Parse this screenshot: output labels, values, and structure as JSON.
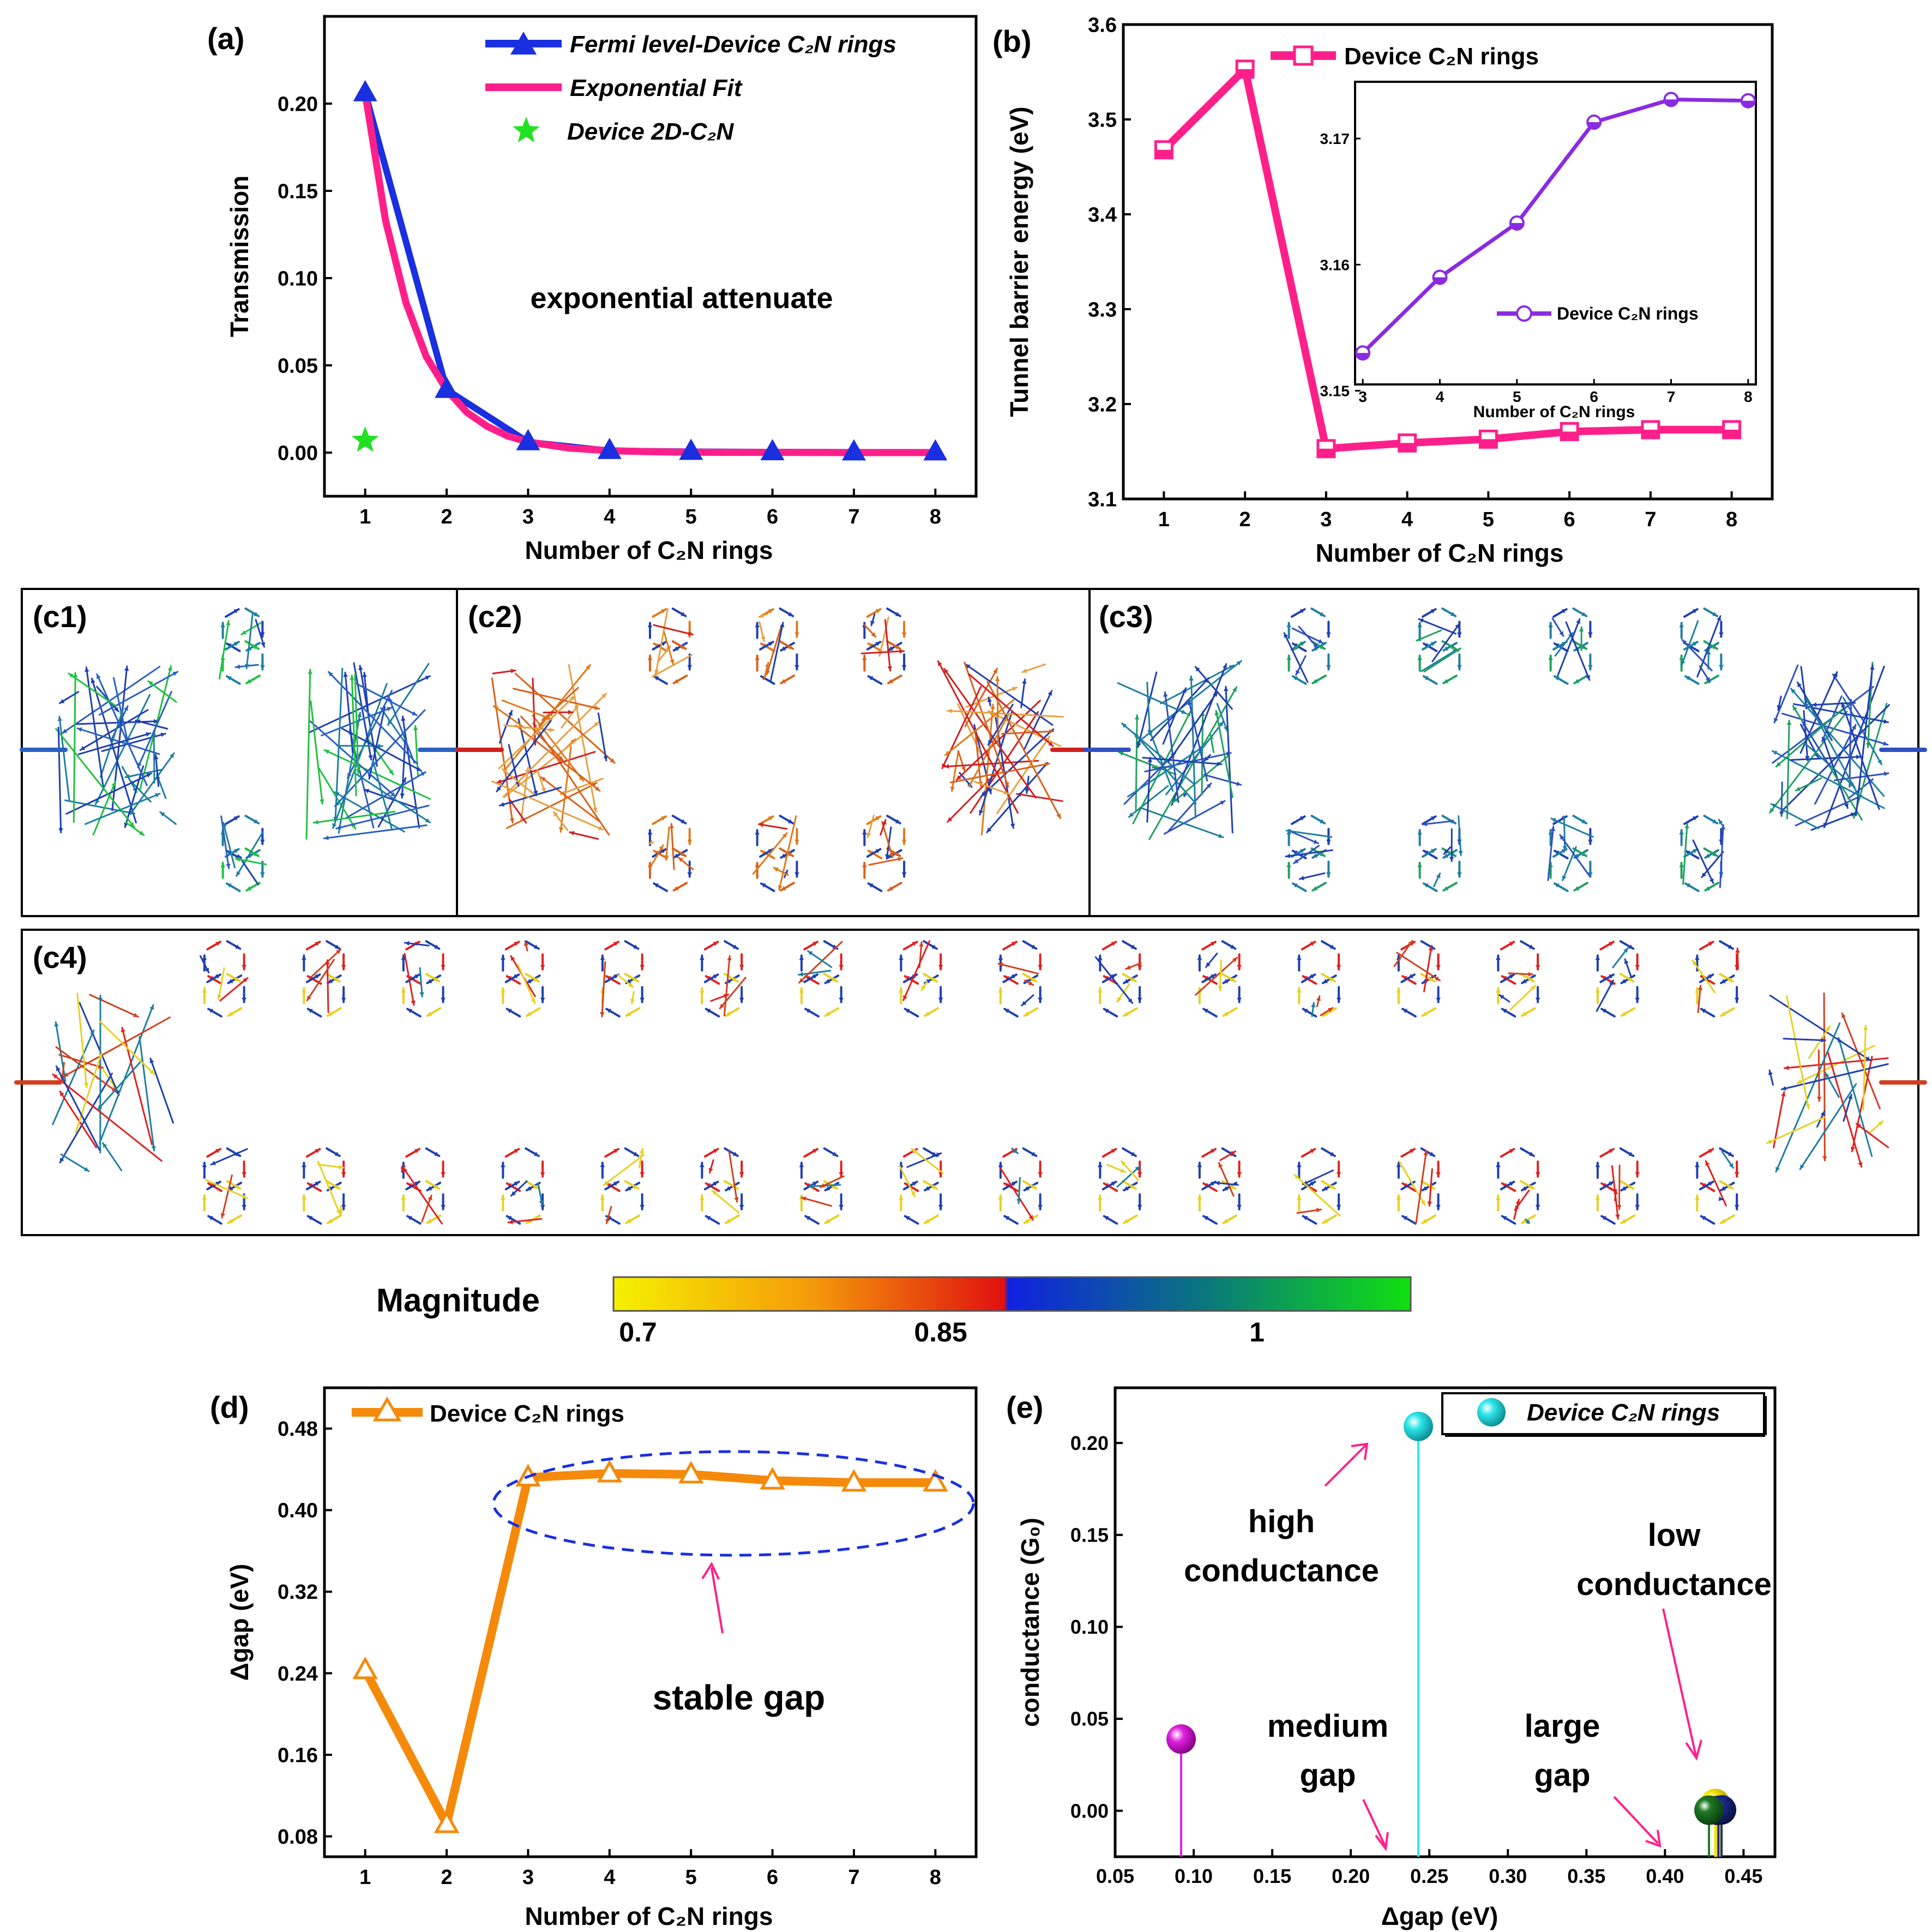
{
  "colors": {
    "blue": "#1a2fe0",
    "pink": "#ff1f8a",
    "green_star": "#22e022",
    "magenta": "#ff1493",
    "purple": "#8a2be2",
    "orange": "#f58a0a",
    "dash_blue": "#1a2fe0",
    "cyan": "#2ee6ea",
    "violet_ball": "#e020e0",
    "yellow_ball": "#f6e20a",
    "darkgreen_ball": "#1e7a24",
    "navy_ball": "#1c2a8c"
  },
  "panel_a": {
    "label": "(a)",
    "ylabel": "Transmission",
    "xlabel": "Number of C₂N rings",
    "annotation": "exponential attenuate",
    "legend": [
      "Fermi level-Device C₂N rings",
      "Exponential Fit",
      "Device 2D-C₂N"
    ],
    "icons": [
      "triangle-marker-icon",
      "star-marker-icon"
    ]
  },
  "panel_b": {
    "label": "(b)",
    "ylabel": "Tunnel barrier energy (eV)",
    "xlabel": "Number of C₂N rings",
    "legend": "Device C₂N rings",
    "inset_xlabel": "Number of C₂N rings",
    "inset_legend": "Device C₂N rings"
  },
  "panel_c": {
    "labels": [
      "(c1)",
      "(c2)",
      "(c3)",
      "(c4)"
    ],
    "colorbar_title": "Magnitude",
    "colorbar_ticks": [
      "0.7",
      "0.85",
      "1"
    ],
    "colorbar_colors": [
      "#f5f000",
      "#f58a0a",
      "#e01010",
      "#1020e0",
      "#0a7a7a",
      "#10e010"
    ],
    "panel_colors": [
      "#2ba06a",
      "#e07818",
      "#2a7ab0",
      "#d04020"
    ],
    "flux_description": "current-flux arrows"
  },
  "panel_d": {
    "label": "(d)",
    "ylabel": "Δgap (eV)",
    "xlabel": "Number of C₂N rings",
    "legend": "Device C₂N rings",
    "annotation": "stable gap"
  },
  "panel_e": {
    "label": "(e)",
    "ylabel": "conductance (G₀)",
    "xlabel": "Δgap (eV)",
    "legend": "Device C₂N rings",
    "annotations": [
      "high",
      "conductance",
      "low",
      "conductance",
      "medium",
      "gap",
      "large",
      "gap"
    ]
  },
  "chart_data": [
    {
      "id": "a",
      "type": "line",
      "title": "",
      "xlabel": "Number of C₂N rings",
      "ylabel": "Transmission",
      "xlim": [
        0.5,
        8.5
      ],
      "ylim": [
        -0.025,
        0.25
      ],
      "xticks": [
        1,
        2,
        3,
        4,
        5,
        6,
        7,
        8
      ],
      "yticks": [
        0.0,
        0.05,
        0.1,
        0.15,
        0.2
      ],
      "ytick_labels": [
        "0.00",
        "0.05",
        "0.10",
        "0.15",
        "0.20"
      ],
      "series": [
        {
          "name": "Fermi level-Device C₂N rings",
          "x": [
            1,
            2,
            3,
            4,
            5,
            6,
            7,
            8
          ],
          "values": [
            0.206,
            0.036,
            0.006,
            0.001,
            0.0005,
            0.0003,
            0.0002,
            0.0002
          ]
        },
        {
          "name": "Exponential Fit",
          "x": [
            1,
            1.25,
            1.5,
            1.75,
            2,
            2.25,
            2.5,
            2.75,
            3,
            3.5,
            4,
            4.5,
            5,
            6,
            7,
            8
          ],
          "values": [
            0.206,
            0.133,
            0.086,
            0.055,
            0.036,
            0.023,
            0.015,
            0.0095,
            0.0061,
            0.0026,
            0.0011,
            0.0005,
            0.0002,
            0.0001,
            0.0,
            0.0
          ]
        },
        {
          "name": "Device 2D-C₂N",
          "x": [
            1
          ],
          "values": [
            0.007
          ]
        }
      ]
    },
    {
      "id": "b",
      "type": "line",
      "xlabel": "Number of C₂N rings",
      "ylabel": "Tunnel barrier energy (eV)",
      "xlim": [
        0.5,
        8.5
      ],
      "ylim": [
        3.1,
        3.6
      ],
      "xticks": [
        1,
        2,
        3,
        4,
        5,
        6,
        7,
        8
      ],
      "yticks": [
        3.1,
        3.2,
        3.3,
        3.4,
        3.5,
        3.6
      ],
      "ytick_labels": [
        "3.1",
        "3.2",
        "3.3",
        "3.4",
        "3.5",
        "3.6"
      ],
      "series": [
        {
          "name": "Device C₂N rings",
          "x": [
            1,
            2,
            3,
            4,
            5,
            6,
            7,
            8
          ],
          "values": [
            3.468,
            3.553,
            3.153,
            3.159,
            3.163,
            3.171,
            3.173,
            3.173
          ]
        }
      ],
      "inset": {
        "xlim": [
          2.9,
          8.1
        ],
        "ylim": [
          3.1505,
          3.1745
        ],
        "xticks": [
          3,
          4,
          5,
          6,
          7,
          8
        ],
        "yticks": [
          3.15,
          3.16,
          3.17
        ],
        "ytick_labels": [
          "3.15",
          "3.16",
          "3.17"
        ],
        "x": [
          3,
          4,
          5,
          6,
          7,
          8
        ],
        "values": [
          3.153,
          3.159,
          3.1633,
          3.1713,
          3.1731,
          3.173
        ]
      }
    },
    {
      "id": "d",
      "type": "line",
      "xlabel": "Number of C₂N rings",
      "ylabel": "Δgap (eV)",
      "xlim": [
        0.5,
        8.5
      ],
      "ylim": [
        0.06,
        0.52
      ],
      "xticks": [
        1,
        2,
        3,
        4,
        5,
        6,
        7,
        8
      ],
      "yticks": [
        0.08,
        0.16,
        0.24,
        0.32,
        0.4,
        0.48
      ],
      "ytick_labels": [
        "0.08",
        "0.16",
        "0.24",
        "0.32",
        "0.40",
        "0.48"
      ],
      "series": [
        {
          "name": "Device C₂N rings",
          "x": [
            1,
            2,
            3,
            4,
            5,
            6,
            7,
            8
          ],
          "values": [
            0.243,
            0.092,
            0.432,
            0.436,
            0.435,
            0.429,
            0.427,
            0.427
          ]
        }
      ]
    },
    {
      "id": "e",
      "type": "scatter",
      "xlabel": "Δgap (eV)",
      "ylabel": "conductance (G₀)",
      "xlim": [
        0.05,
        0.47
      ],
      "ylim": [
        -0.025,
        0.23
      ],
      "xticks": [
        0.05,
        0.1,
        0.15,
        0.2,
        0.25,
        0.3,
        0.35,
        0.4,
        0.45
      ],
      "xtick_labels": [
        "0.05",
        "0.10",
        "0.15",
        "0.20",
        "0.25",
        "0.30",
        "0.35",
        "0.40",
        "0.45"
      ],
      "yticks": [
        0.0,
        0.05,
        0.1,
        0.15,
        0.2
      ],
      "ytick_labels": [
        "0.00",
        "0.05",
        "0.10",
        "0.15",
        "0.20"
      ],
      "series": [
        {
          "name": "Device C₂N rings",
          "x": [
            0.092,
            0.243,
            0.432,
            0.436,
            0.428,
            0.435,
            0.434,
            0.433
          ],
          "values": [
            0.039,
            0.209,
            0.004,
            0.0005,
            0.0003,
            0.0002,
            0.0002,
            0.0002
          ]
        }
      ]
    }
  ]
}
